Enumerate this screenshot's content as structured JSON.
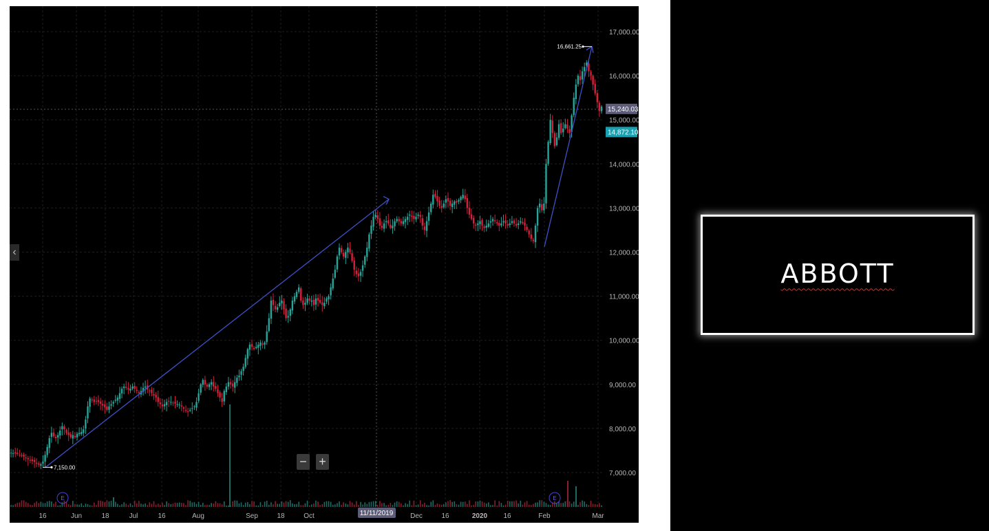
{
  "title_box": {
    "text": "ABBOTT"
  },
  "controls": {
    "zoom_out": "−",
    "zoom_in": "+",
    "scroll_left": "‹"
  },
  "colors": {
    "up": "#26a69a",
    "down": "#d5213b",
    "trend": "#3f51c9",
    "grid": "#1e1e1e",
    "last_price_bg": "#1aa0b0",
    "crosshair_bg": "#5d5d7a"
  },
  "chart_data": {
    "type": "candlestick",
    "title": "",
    "xlabel": "",
    "ylabel": "",
    "ylim": [
      6250,
      17550
    ],
    "yticks": [
      "17,000.00",
      "16,000.00",
      "15,000.00",
      "14,000.00",
      "13,000.00",
      "12,000.00",
      "11,000.00",
      "10,000.00",
      "9,000.00",
      "8,000.00",
      "7,000.00"
    ],
    "xticks": [
      "16",
      "Jun",
      "18",
      "Jul",
      "16",
      "Aug",
      "Sep",
      "18",
      "Oct",
      "Dec",
      "16",
      "2020",
      "16",
      "Feb",
      "Mar"
    ],
    "crosshair_x_label": "11/11/2019",
    "crosshair_price": 15240,
    "crosshair_price_label": "15,240.03",
    "last_price": 14872.1,
    "last_price_label": "14,872.10",
    "annotations": [
      {
        "text": "7,150.00",
        "price": 7150
      },
      {
        "text": "16,661.25",
        "price": 16661.25
      }
    ],
    "trend_lines": [
      {
        "from": 7150,
        "to": 13200
      },
      {
        "from": 12200,
        "to": 16661.25
      }
    ],
    "earnings_markers": [
      "E",
      "E"
    ],
    "series": [
      {
        "name": "close",
        "values": [
          7450,
          7440,
          7430,
          7420,
          7400,
          7380,
          7360,
          7340,
          7300,
          7280,
          7260,
          7240,
          7200,
          7180,
          7190,
          7250,
          7400,
          7580,
          7780,
          7900,
          7820,
          7780,
          7850,
          7950,
          8050,
          7980,
          7900,
          7850,
          7800,
          7850,
          7800,
          7880,
          7900,
          7920,
          7980,
          8200,
          8500,
          8680,
          8650,
          8600,
          8620,
          8600,
          8560,
          8520,
          8480,
          8420,
          8500,
          8550,
          8600,
          8650,
          8700,
          8800,
          8900,
          8950,
          8920,
          8880,
          8900,
          8950,
          8900,
          8850,
          8800,
          8850,
          8920,
          8950,
          8880,
          8850,
          8800,
          8750,
          8700,
          8600,
          8550,
          8500,
          8550,
          8600,
          8620,
          8600,
          8580,
          8560,
          8550,
          8540,
          8500,
          8450,
          8400,
          8380,
          8420,
          8460,
          8500,
          8600,
          8800,
          9000,
          9100,
          9000,
          8950,
          9000,
          9050,
          8950,
          8900,
          8800,
          8700,
          8600,
          8850,
          8950,
          9050,
          9000,
          8950,
          9050,
          9150,
          9200,
          9300,
          9400,
          9600,
          9800,
          9900,
          9850,
          9800,
          9850,
          9900,
          9950,
          9900,
          9950,
          10200,
          10500,
          10900,
          10800,
          10700,
          10750,
          10850,
          10900,
          10700,
          10500,
          10550,
          10700,
          10900,
          11000,
          11100,
          11200,
          10900,
          10800,
          10850,
          10950,
          10900,
          10900,
          10800,
          10950,
          10900,
          10850,
          10800,
          10850,
          10950,
          11000,
          11200,
          11400,
          11600,
          11900,
          12100,
          12000,
          11900,
          12000,
          12100,
          12000,
          11800,
          11600,
          11500,
          11450,
          11550,
          11700,
          11900,
          12100,
          12400,
          12600,
          12800,
          12850,
          12750,
          12600,
          12550,
          12650,
          12700,
          12650,
          12550,
          12600,
          12700,
          12750,
          12700,
          12650,
          12700,
          12750,
          12800,
          12850,
          12800,
          12750,
          12800,
          12850,
          12800,
          12600,
          12500,
          12700,
          12900,
          13100,
          13300,
          13250,
          13150,
          13050,
          13000,
          13100,
          13200,
          13150,
          13050,
          13100,
          13150,
          13120,
          13180,
          13250,
          13300,
          13200,
          13000,
          12850,
          12750,
          12650,
          12600,
          12650,
          12700,
          12600,
          12550,
          12600,
          12650,
          12700,
          12750,
          12700,
          12650,
          12600,
          12650,
          12700,
          12650,
          12600,
          12650,
          12700,
          12650,
          12600,
          12650,
          12700,
          12650,
          12600,
          12500,
          12400,
          12300,
          12250,
          12600,
          13000,
          13100,
          12950,
          13100,
          14000,
          14500,
          15000,
          14700,
          14400,
          14600,
          14900,
          14700,
          14800,
          14900,
          14800,
          14700,
          15100,
          15500,
          15800,
          16000,
          15900,
          16100,
          16200,
          16300,
          16100,
          16000,
          15800,
          15600,
          15400,
          15200,
          15300
        ]
      }
    ]
  }
}
